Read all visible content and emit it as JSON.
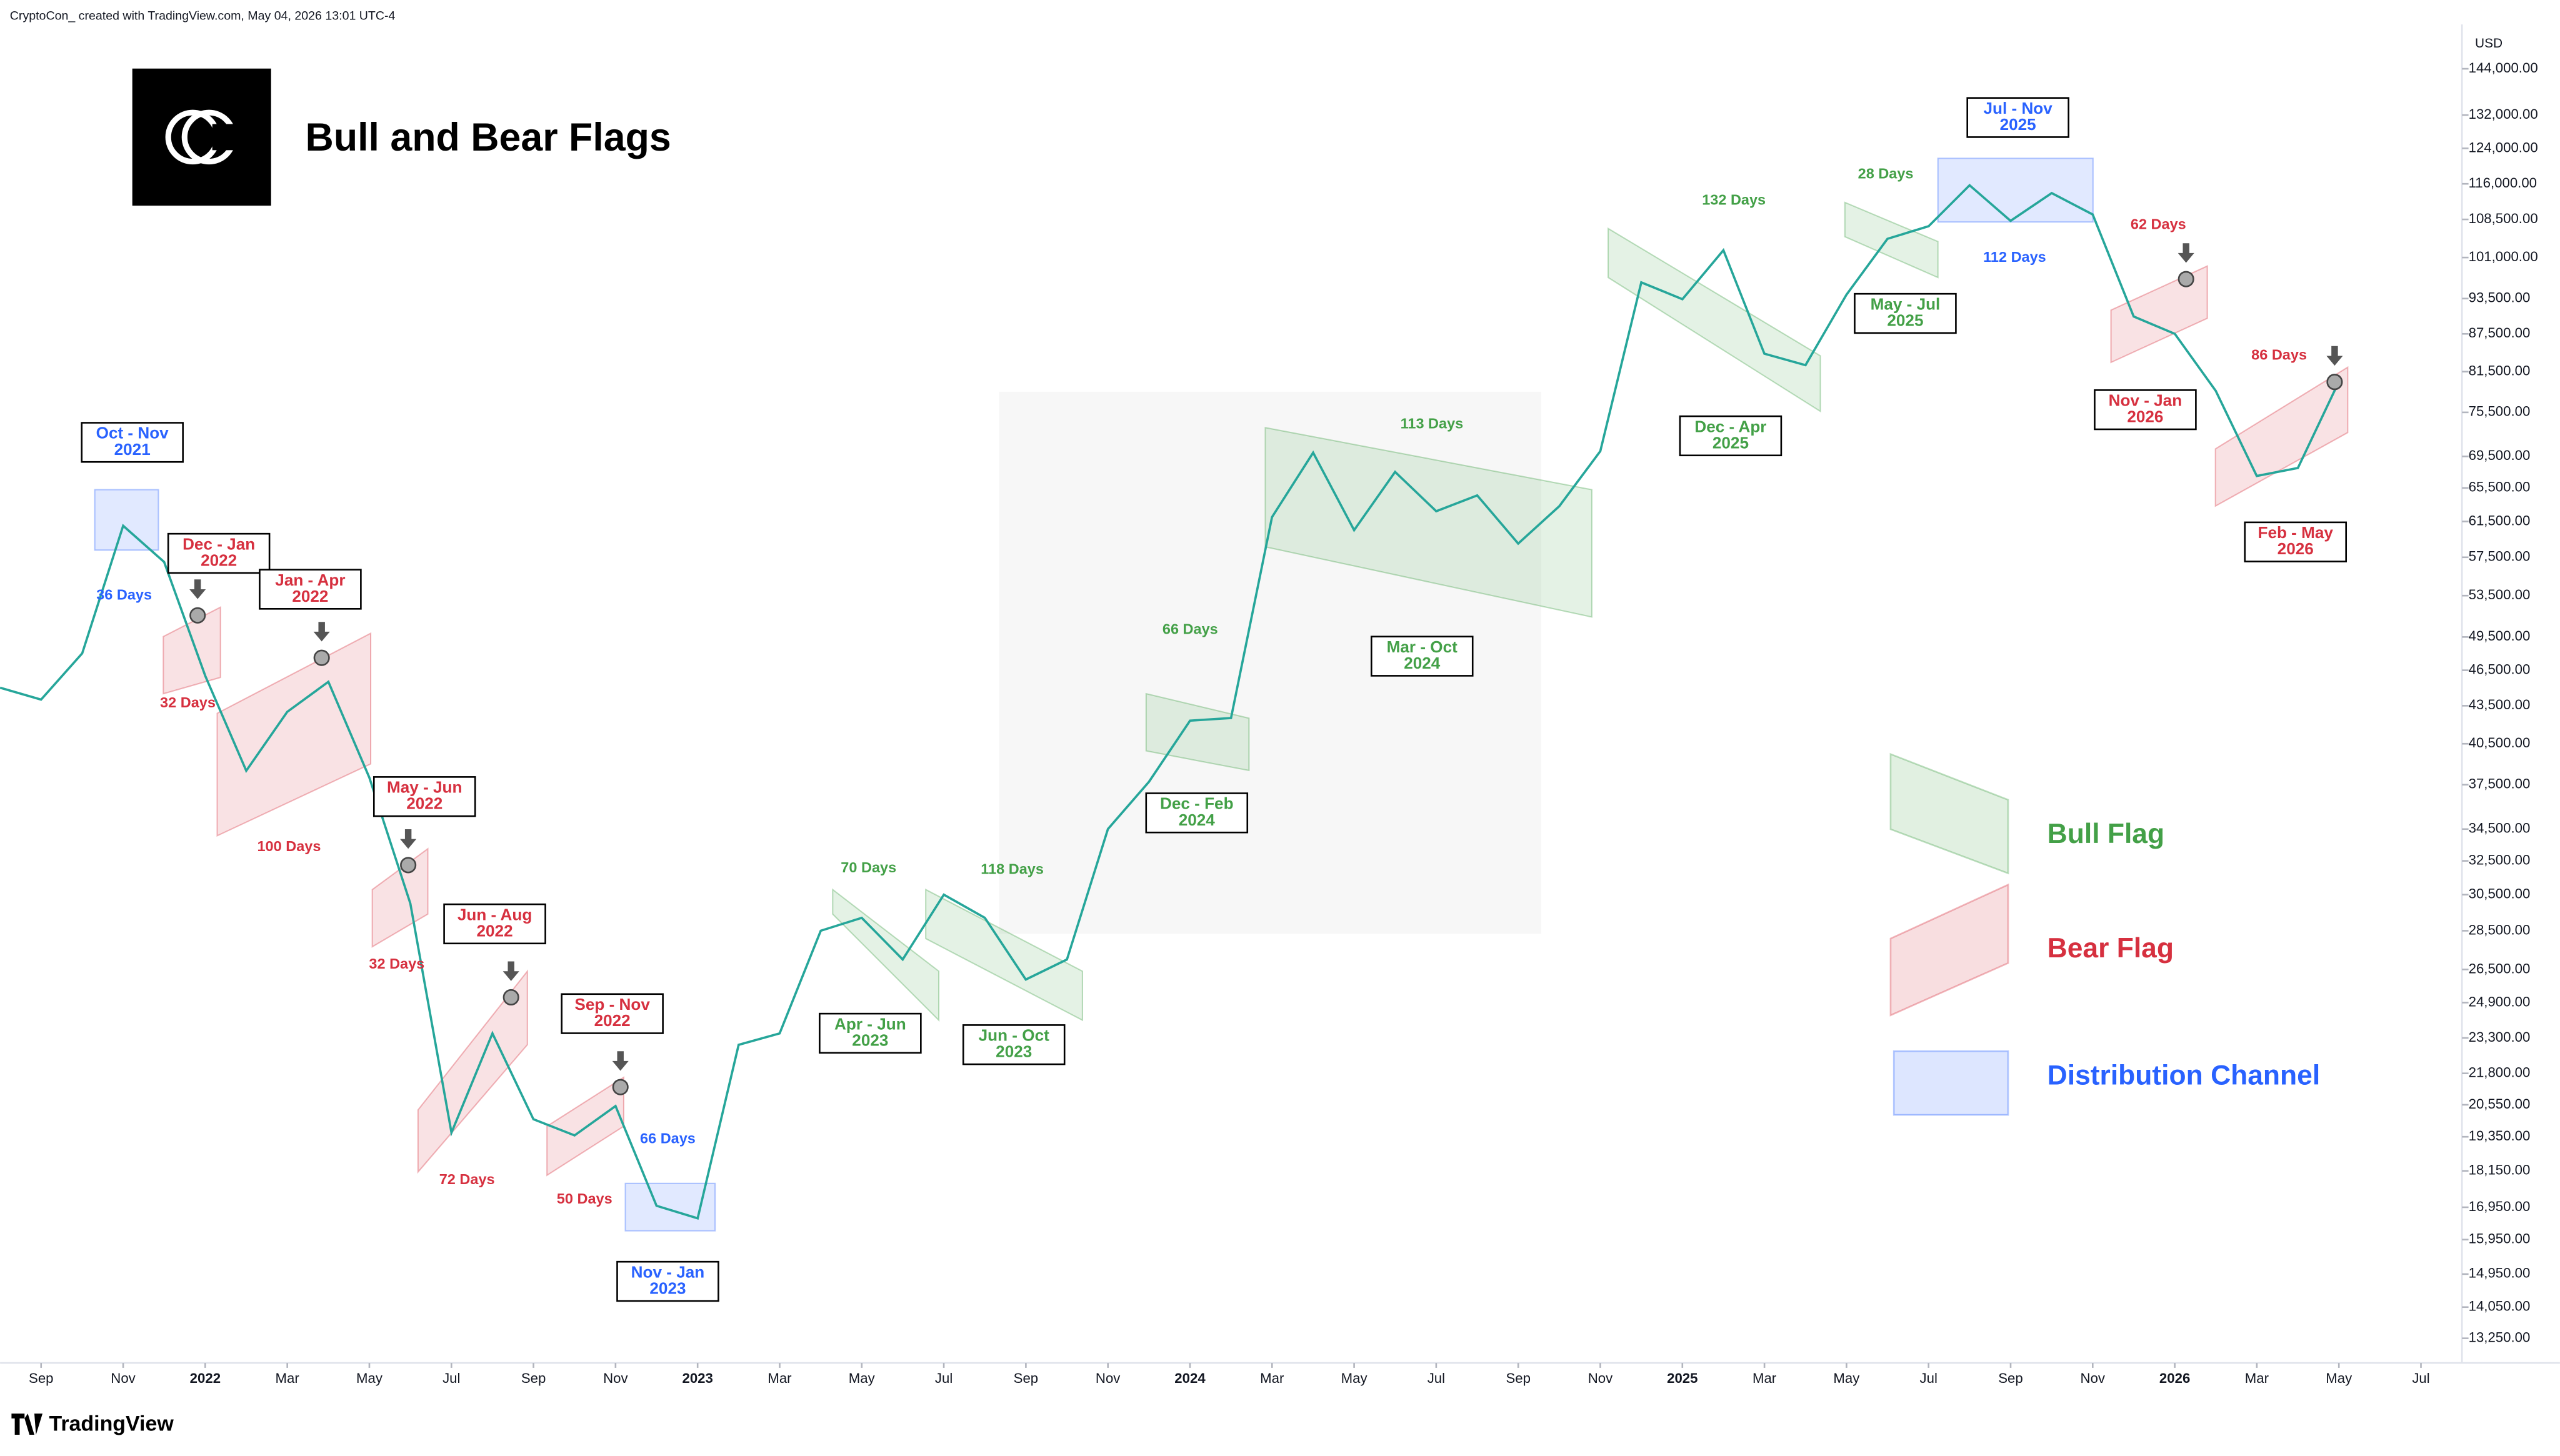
{
  "header": {
    "credit": "CryptoCon_ created with TradingView.com, May 04, 2026 13:01 UTC-4",
    "title": "Bull and Bear Flags",
    "brand": "TradingView"
  },
  "chart_data": {
    "type": "line",
    "y_unit": "USD",
    "log_scale": true,
    "grid": false,
    "xlim": [
      "2021-08",
      "2026-08"
    ],
    "xticks": [
      {
        "value": "2021-09",
        "label": "Sep"
      },
      {
        "value": "2021-11",
        "label": "Nov"
      },
      {
        "value": "2022-01",
        "label": "2022"
      },
      {
        "value": "2022-03",
        "label": "Mar"
      },
      {
        "value": "2022-05",
        "label": "May"
      },
      {
        "value": "2022-07",
        "label": "Jul"
      },
      {
        "value": "2022-09",
        "label": "Sep"
      },
      {
        "value": "2022-11",
        "label": "Nov"
      },
      {
        "value": "2023-01",
        "label": "2023"
      },
      {
        "value": "2023-03",
        "label": "Mar"
      },
      {
        "value": "2023-05",
        "label": "May"
      },
      {
        "value": "2023-07",
        "label": "Jul"
      },
      {
        "value": "2023-09",
        "label": "Sep"
      },
      {
        "value": "2023-11",
        "label": "Nov"
      },
      {
        "value": "2024-01",
        "label": "2024"
      },
      {
        "value": "2024-03",
        "label": "Mar"
      },
      {
        "value": "2024-05",
        "label": "May"
      },
      {
        "value": "2024-07",
        "label": "Jul"
      },
      {
        "value": "2024-09",
        "label": "Sep"
      },
      {
        "value": "2024-11",
        "label": "Nov"
      },
      {
        "value": "2025-01",
        "label": "2025"
      },
      {
        "value": "2025-03",
        "label": "Mar"
      },
      {
        "value": "2025-05",
        "label": "May"
      },
      {
        "value": "2025-07",
        "label": "Jul"
      },
      {
        "value": "2025-09",
        "label": "Sep"
      },
      {
        "value": "2025-11",
        "label": "Nov"
      },
      {
        "value": "2026-01",
        "label": "2026"
      },
      {
        "value": "2026-03",
        "label": "Mar"
      },
      {
        "value": "2026-05",
        "label": "May"
      },
      {
        "value": "2026-07",
        "label": "Jul"
      }
    ],
    "ylim": [
      12650,
      156500
    ],
    "yticks": [
      {
        "value": 144000,
        "label": "144,000.00"
      },
      {
        "value": 132000,
        "label": "132,000.00"
      },
      {
        "value": 124000,
        "label": "124,000.00"
      },
      {
        "value": 116000,
        "label": "116,000.00"
      },
      {
        "value": 108500,
        "label": "108,500.00"
      },
      {
        "value": 101000,
        "label": "101,000.00"
      },
      {
        "value": 93500,
        "label": "93,500.00"
      },
      {
        "value": 87500,
        "label": "87,500.00"
      },
      {
        "value": 81500,
        "label": "81,500.00"
      },
      {
        "value": 75500,
        "label": "75,500.00"
      },
      {
        "value": 69500,
        "label": "69,500.00"
      },
      {
        "value": 65500,
        "label": "65,500.00"
      },
      {
        "value": 61500,
        "label": "61,500.00"
      },
      {
        "value": 57500,
        "label": "57,500.00"
      },
      {
        "value": 53500,
        "label": "53,500.00"
      },
      {
        "value": 49500,
        "label": "49,500.00"
      },
      {
        "value": 46500,
        "label": "46,500.00"
      },
      {
        "value": 43500,
        "label": "43,500.00"
      },
      {
        "value": 40500,
        "label": "40,500.00"
      },
      {
        "value": 37500,
        "label": "37,500.00"
      },
      {
        "value": 34500,
        "label": "34,500.00"
      },
      {
        "value": 32500,
        "label": "32,500.00"
      },
      {
        "value": 30500,
        "label": "30,500.00"
      },
      {
        "value": 28500,
        "label": "28,500.00"
      },
      {
        "value": 26500,
        "label": "26,500.00"
      },
      {
        "value": 24900,
        "label": "24,900.00"
      },
      {
        "value": 23300,
        "label": "23,300.00"
      },
      {
        "value": 21800,
        "label": "21,800.00"
      },
      {
        "value": 20550,
        "label": "20,550.00"
      },
      {
        "value": 19350,
        "label": "19,350.00"
      },
      {
        "value": 18150,
        "label": "18,150.00"
      },
      {
        "value": 16950,
        "label": "16,950.00"
      },
      {
        "value": 15950,
        "label": "15,950.00"
      },
      {
        "value": 14950,
        "label": "14,950.00"
      },
      {
        "value": 14050,
        "label": "14,050.00"
      },
      {
        "value": 13250,
        "label": "13,250.00"
      }
    ],
    "series": [
      {
        "color": "#26a69a",
        "x": [
          "2021-08",
          "2021-09",
          "2021-10",
          "2021-11",
          "2021-12",
          "2022-01",
          "2022-02",
          "2022-03",
          "2022-04",
          "2022-05",
          "2022-06",
          "2022-07",
          "2022-08",
          "2022-09",
          "2022-10",
          "2022-11",
          "2022-12",
          "2023-01",
          "2023-02",
          "2023-03",
          "2023-04",
          "2023-05",
          "2023-06",
          "2023-07",
          "2023-08",
          "2023-09",
          "2023-10",
          "2023-11",
          "2023-12",
          "2024-01",
          "2024-02",
          "2024-03",
          "2024-04",
          "2024-05",
          "2024-06",
          "2024-07",
          "2024-08",
          "2024-09",
          "2024-10",
          "2024-11",
          "2024-12",
          "2025-01",
          "2025-02",
          "2025-03",
          "2025-04",
          "2025-05",
          "2025-06",
          "2025-07",
          "2025-08",
          "2025-09",
          "2025-10",
          "2025-11",
          "2025-12",
          "2026-01",
          "2026-02",
          "2026-03",
          "2026-04",
          "2026-05"
        ],
        "values": [
          45000,
          44000,
          48000,
          61000,
          57000,
          46000,
          38500,
          43000,
          45500,
          38000,
          30000,
          19500,
          23500,
          20000,
          19400,
          20500,
          17000,
          16600,
          23000,
          23500,
          28500,
          29200,
          27000,
          30500,
          29200,
          26000,
          27000,
          34500,
          37700,
          42300,
          42500,
          62000,
          70000,
          60500,
          67500,
          62700,
          64600,
          59000,
          63300,
          70200,
          96400,
          93400,
          102400,
          84300,
          82500,
          94200,
          104600,
          107100,
          115700,
          108200,
          114000,
          109500,
          90400,
          87500,
          78600,
          67000,
          68000,
          80000
        ]
      }
    ],
    "flags": [
      {
        "label": [
          "Oct - Nov",
          "2021"
        ],
        "days": "36 Days",
        "color": "#2962ff"
      },
      {
        "label": [
          "Dec - Jan",
          "2022"
        ],
        "days": "32 Days",
        "color": "#d6303f"
      },
      {
        "label": [
          "Jan - Apr",
          "2022"
        ],
        "days": "100 Days",
        "color": "#d6303f"
      },
      {
        "label": [
          "May - Jun",
          "2022"
        ],
        "days": "32 Days",
        "color": "#d6303f"
      },
      {
        "label": [
          "Jun - Aug",
          "2022"
        ],
        "days": "72 Days",
        "color": "#d6303f"
      },
      {
        "label": [
          "Sep - Nov",
          "2022"
        ],
        "days": "50 Days",
        "color": "#d6303f"
      },
      {
        "label": [
          "Nov - Jan",
          "2023"
        ],
        "days": "66 Days",
        "color": "#2962ff"
      },
      {
        "label": [
          "Apr - Jun",
          "2023"
        ],
        "days": "70 Days",
        "color": "#43a047"
      },
      {
        "label": [
          "Jun - Oct",
          "2023"
        ],
        "days": "118 Days",
        "color": "#43a047"
      },
      {
        "label": [
          "Dec - Feb",
          "2024"
        ],
        "days": "66 Days",
        "color": "#43a047"
      },
      {
        "label": [
          "Mar - Oct",
          "2024"
        ],
        "days": "113 Days",
        "color": "#43a047"
      },
      {
        "label": [
          "Dec - Apr",
          "2025"
        ],
        "days": "132 Days",
        "color": "#43a047"
      },
      {
        "label": [
          "May - Jul",
          "2025"
        ],
        "days": "28 Days",
        "color": "#43a047"
      },
      {
        "label": [
          "Jul - Nov",
          "2025"
        ],
        "days": "112 Days",
        "color": "#2962ff"
      },
      {
        "label": [
          "Nov - Jan",
          "2026"
        ],
        "days": "62 Days",
        "color": "#d6303f"
      },
      {
        "label": [
          "Feb - May",
          "2026"
        ],
        "days": "86 Days",
        "color": "#d6303f"
      }
    ],
    "legend": [
      {
        "name": "Bull Flag",
        "color": "#43a047"
      },
      {
        "name": "Bear Flag",
        "color": "#d6303f"
      },
      {
        "name": "Distribution Channel",
        "color": "#2962ff"
      }
    ]
  }
}
